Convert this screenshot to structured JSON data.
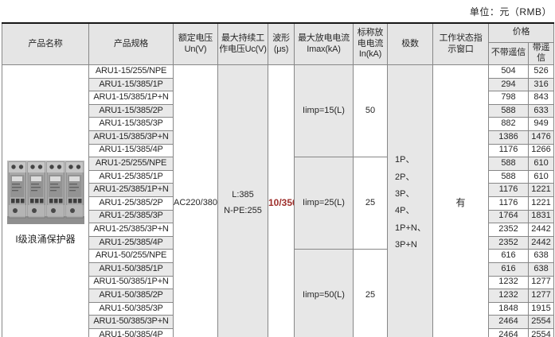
{
  "unit_label": "单位：元（RMB）",
  "colors": {
    "accent_red": "#9e2f2b",
    "header_bg": "#e5e5e5",
    "row_alt_bg": "#e9e9e9",
    "merged_gray_bg": "#e7e7e7",
    "border": "#878787"
  },
  "table": {
    "headers": {
      "product_name": "产品名称",
      "product_spec": "产品规格",
      "rated_voltage": "额定电压\nUn(V)",
      "max_continuous_voltage": "最大持续工\n作电压Uc(V)",
      "waveform": "波形\n(μs)",
      "max_discharge_current": "最大放电电流\nImax(kA)",
      "nominal_discharge_current": "标称放\n电电流\nIn(kA)",
      "poles": "极数",
      "status_window": "工作状态指\n示窗口",
      "price": "价格",
      "price_without_remote": "不带遥信",
      "price_with_remote": "带遥信"
    },
    "product_name": "I级浪涌保护器",
    "shared": {
      "rated_voltage": "AC220/380",
      "max_continuous_voltage": "L:385\nN-PE:255",
      "waveform": "10/350",
      "poles": "1P、2P、\n3P、4P、\n1P+N、\n3P+N",
      "status_window": "有"
    },
    "groups": [
      {
        "imax": "Iimp=15(L)",
        "in_ka": "50"
      },
      {
        "imax": "Iimp=25(L)",
        "in_ka": "25"
      },
      {
        "imax": "Iimp=50(L)",
        "in_ka": "25"
      }
    ],
    "rows": [
      {
        "spec": "ARU1-15/255/NPE",
        "price_without_remote": "504",
        "price_with_remote": "526"
      },
      {
        "spec": "ARU1-15/385/1P",
        "price_without_remote": "294",
        "price_with_remote": "316"
      },
      {
        "spec": "ARU1-15/385/1P+N",
        "price_without_remote": "798",
        "price_with_remote": "843"
      },
      {
        "spec": "ARU1-15/385/2P",
        "price_without_remote": "588",
        "price_with_remote": "633"
      },
      {
        "spec": "ARU1-15/385/3P",
        "price_without_remote": "882",
        "price_with_remote": "949"
      },
      {
        "spec": "ARU1-15/385/3P+N",
        "price_without_remote": "1386",
        "price_with_remote": "1476"
      },
      {
        "spec": "ARU1-15/385/4P",
        "price_without_remote": "1176",
        "price_with_remote": "1266"
      },
      {
        "spec": "ARU1-25/255/NPE",
        "price_without_remote": "588",
        "price_with_remote": "610"
      },
      {
        "spec": "ARU1-25/385/1P",
        "price_without_remote": "588",
        "price_with_remote": "610"
      },
      {
        "spec": "ARU1-25/385/1P+N",
        "price_without_remote": "1176",
        "price_with_remote": "1221"
      },
      {
        "spec": "ARU1-25/385/2P",
        "price_without_remote": "1176",
        "price_with_remote": "1221"
      },
      {
        "spec": "ARU1-25/385/3P",
        "price_without_remote": "1764",
        "price_with_remote": "1831"
      },
      {
        "spec": "ARU1-25/385/3P+N",
        "price_without_remote": "2352",
        "price_with_remote": "2442"
      },
      {
        "spec": "ARU1-25/385/4P",
        "price_without_remote": "2352",
        "price_with_remote": "2442"
      },
      {
        "spec": "ARU1-50/255/NPE",
        "price_without_remote": "616",
        "price_with_remote": "638"
      },
      {
        "spec": "ARU1-50/385/1P",
        "price_without_remote": "616",
        "price_with_remote": "638"
      },
      {
        "spec": "ARU1-50/385/1P+N",
        "price_without_remote": "1232",
        "price_with_remote": "1277"
      },
      {
        "spec": "ARU1-50/385/2P",
        "price_without_remote": "1232",
        "price_with_remote": "1277"
      },
      {
        "spec": "ARU1-50/385/3P",
        "price_without_remote": "1848",
        "price_with_remote": "1915"
      },
      {
        "spec": "ARU1-50/385/3P+N",
        "price_without_remote": "2464",
        "price_with_remote": "2554"
      },
      {
        "spec": "ARU1-50/385/4P",
        "price_without_remote": "2464",
        "price_with_remote": "2554"
      }
    ]
  }
}
